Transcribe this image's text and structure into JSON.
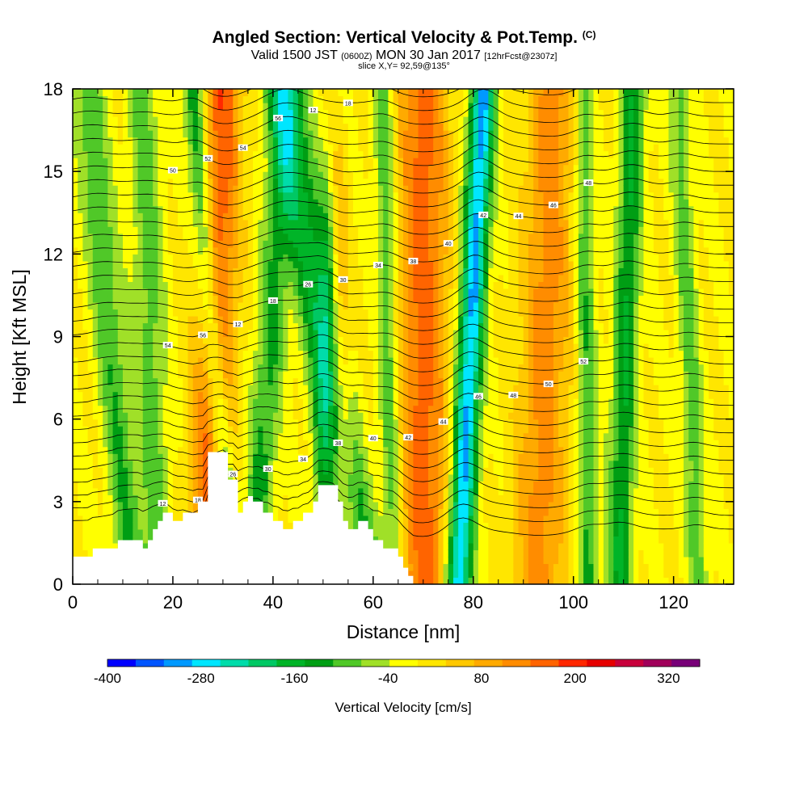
{
  "header": {
    "title": "Angled Section: Vertical Velocity & Pot.Temp.",
    "title_suffix": "(C)",
    "line2_a": "Valid 1500 JST",
    "line2_b": "(0600Z)",
    "line2_c": "MON 30 Jan 2017",
    "line2_d": "[12hrFcst@2307z]",
    "line3": "slice X,Y= 92,59@135°"
  },
  "chart_data": {
    "type": "heatmap",
    "title": "Angled Section: Vertical Velocity & Pot.Temp. (C)",
    "xlabel": "Distance [nm]",
    "ylabel": "Height [Kft MSL]",
    "xlim": [
      0,
      132
    ],
    "ylim": [
      0,
      18
    ],
    "x_ticks": [
      "0",
      "20",
      "40",
      "60",
      "80",
      "100",
      "120"
    ],
    "y_ticks": [
      "0",
      "3",
      "6",
      "9",
      "12",
      "15",
      "18"
    ],
    "background_velocity": 40,
    "bands": [
      {
        "x_bottom": 12,
        "x_top": 3,
        "width": 3,
        "value": -120
      },
      {
        "x_bottom": 17,
        "x_top": 14,
        "width": 3,
        "value": -100
      },
      {
        "x_bottom": 27,
        "x_top": 30,
        "width": 4,
        "value": 190
      },
      {
        "x_bottom": 32,
        "x_top": 24,
        "width": 2,
        "value": -180
      },
      {
        "x_bottom": 36,
        "x_top": 43,
        "width": 3,
        "value": -130
      },
      {
        "x_bottom": 49,
        "x_top": 52,
        "width": 2,
        "value": -100
      },
      {
        "x_bottom": 55,
        "x_top": 52,
        "width": 2,
        "value": 110
      },
      {
        "x_bottom": 58,
        "x_top": 42,
        "width": 4,
        "value": -180
      },
      {
        "x_bottom": 64,
        "x_top": 62,
        "width": 2,
        "value": -120
      },
      {
        "x_bottom": 70,
        "x_top": 70,
        "width": 5,
        "value": 180
      },
      {
        "x_bottom": 77,
        "x_top": 82,
        "width": 2.5,
        "value": -330
      },
      {
        "x_bottom": 93,
        "x_top": 96,
        "width": 5,
        "value": 140
      },
      {
        "x_bottom": 103,
        "x_top": 102,
        "width": 2,
        "value": -120
      },
      {
        "x_bottom": 109,
        "x_top": 112,
        "width": 2.5,
        "value": -160
      },
      {
        "x_bottom": 125,
        "x_top": 121,
        "width": 2,
        "value": -100
      }
    ],
    "terrain": [
      [
        0,
        1.0
      ],
      [
        4,
        1.0
      ],
      [
        4,
        1.3
      ],
      [
        9,
        1.3
      ],
      [
        9,
        1.6
      ],
      [
        14,
        1.6
      ],
      [
        14,
        1.3
      ],
      [
        15,
        1.3
      ],
      [
        15,
        1.6
      ],
      [
        16,
        1.6
      ],
      [
        16,
        2.0
      ],
      [
        17,
        2.0
      ],
      [
        17,
        2.3
      ],
      [
        18,
        2.3
      ],
      [
        18,
        2.6
      ],
      [
        20,
        2.6
      ],
      [
        20,
        2.3
      ],
      [
        22,
        2.3
      ],
      [
        22,
        2.6
      ],
      [
        25,
        2.6
      ],
      [
        25,
        3.0
      ],
      [
        27,
        3.0
      ],
      [
        27,
        4.8
      ],
      [
        31,
        4.8
      ],
      [
        31,
        3.8
      ],
      [
        33,
        3.8
      ],
      [
        33,
        2.6
      ],
      [
        34,
        2.6
      ],
      [
        34,
        3.0
      ],
      [
        35,
        3.0
      ],
      [
        35,
        3.2
      ],
      [
        36,
        3.2
      ],
      [
        36,
        3.0
      ],
      [
        38,
        3.0
      ],
      [
        38,
        2.6
      ],
      [
        40,
        2.6
      ],
      [
        40,
        2.3
      ],
      [
        42,
        2.3
      ],
      [
        42,
        2.0
      ],
      [
        44,
        2.0
      ],
      [
        44,
        2.3
      ],
      [
        46,
        2.3
      ],
      [
        46,
        2.6
      ],
      [
        48,
        2.6
      ],
      [
        48,
        3.0
      ],
      [
        49,
        3.0
      ],
      [
        49,
        3.6
      ],
      [
        53,
        3.6
      ],
      [
        53,
        3.0
      ],
      [
        54,
        3.0
      ],
      [
        54,
        2.3
      ],
      [
        55,
        2.3
      ],
      [
        55,
        2.0
      ],
      [
        57,
        2.0
      ],
      [
        57,
        2.3
      ],
      [
        59,
        2.3
      ],
      [
        59,
        2.0
      ],
      [
        60,
        2.0
      ],
      [
        60,
        1.6
      ],
      [
        62,
        1.6
      ],
      [
        62,
        1.3
      ],
      [
        65,
        1.3
      ],
      [
        65,
        1.0
      ],
      [
        66,
        1.0
      ],
      [
        66,
        0.6
      ],
      [
        67,
        0.6
      ],
      [
        67,
        0.3
      ],
      [
        68,
        0.3
      ],
      [
        68,
        0.0
      ]
    ],
    "theta_levels_start": 2,
    "theta_levels_step": 2,
    "theta_levels_count": 36,
    "contour_labels": [
      "12",
      "18",
      "26",
      "30",
      "34",
      "38",
      "40",
      "42",
      "44",
      "46",
      "48",
      "50",
      "52",
      "54",
      "56"
    ],
    "colorbar": {
      "label": "Vertical Velocity [cm/s]",
      "min": -400,
      "max": 360,
      "step": 40,
      "tick_labels": [
        "-400",
        "-280",
        "-160",
        "-40",
        "80",
        "200",
        "320"
      ],
      "colors": [
        "#0000ff",
        "#0055ff",
        "#0099ff",
        "#00e6ff",
        "#00dcaa",
        "#00c864",
        "#00b428",
        "#009e14",
        "#50c828",
        "#a0e028",
        "#ffff00",
        "#ffe600",
        "#ffc800",
        "#ffaa00",
        "#ff8c00",
        "#ff6400",
        "#ff2800",
        "#e60000",
        "#c8003c",
        "#a0005a",
        "#780078"
      ]
    }
  }
}
